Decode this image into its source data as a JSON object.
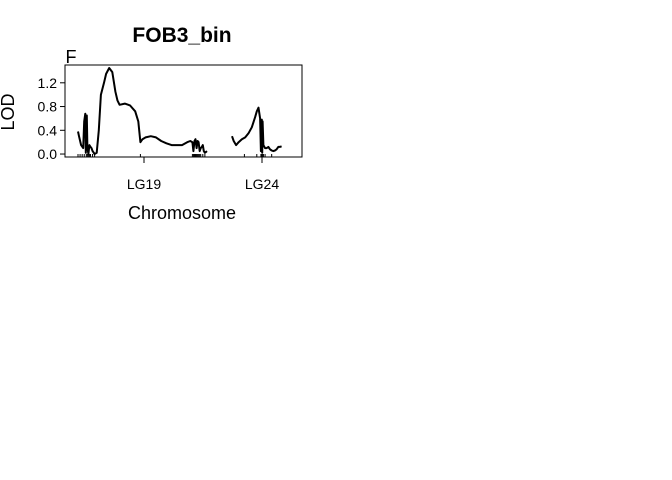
{
  "chart_data": {
    "type": "line",
    "title": "FOB3_bin",
    "panel_label": "F",
    "xlabel": "Chromosome",
    "ylabel": "LOD",
    "ylim": [
      -0.05,
      1.5
    ],
    "yticks": [
      0.0,
      0.4,
      0.8,
      1.2
    ],
    "ytick_labels": [
      "0.0",
      "0.4",
      "0.8",
      "1.2"
    ],
    "grid": false,
    "legend": "none",
    "line_color": "#000000",
    "chromosomes": [
      {
        "name": "LG19",
        "label": "LG19",
        "length_cM": 125,
        "markers_cM": [
          0,
          2,
          4,
          6,
          8,
          9,
          10,
          11,
          12,
          14,
          16,
          60,
          110,
          111,
          112,
          113,
          114,
          115,
          116,
          117,
          118,
          120,
          122
        ],
        "position": [
          0,
          1,
          3,
          5,
          6,
          7,
          7.5,
          8,
          8.5,
          9,
          10,
          11,
          12,
          13,
          14,
          16,
          18,
          20,
          22,
          25,
          27,
          30,
          33,
          36,
          38,
          40,
          45,
          50,
          55,
          58,
          60,
          62,
          65,
          70,
          75,
          80,
          85,
          90,
          95,
          100,
          105,
          108,
          110,
          111,
          112,
          113,
          114,
          115,
          116,
          117,
          118,
          119,
          120,
          121,
          122,
          124
        ],
        "lod": [
          0.38,
          0.3,
          0.15,
          0.1,
          0.55,
          0.68,
          0.02,
          0.6,
          0.65,
          0.1,
          0.0,
          0.15,
          0.12,
          0.1,
          0.05,
          0.0,
          0.02,
          0.4,
          1.0,
          1.2,
          1.35,
          1.45,
          1.38,
          1.05,
          0.9,
          0.83,
          0.85,
          0.82,
          0.72,
          0.55,
          0.2,
          0.25,
          0.28,
          0.3,
          0.28,
          0.22,
          0.18,
          0.15,
          0.15,
          0.15,
          0.2,
          0.22,
          0.2,
          0.05,
          0.22,
          0.25,
          0.1,
          0.22,
          0.2,
          0.05,
          0.1,
          0.12,
          0.15,
          0.05,
          0.02,
          0.05
        ]
      },
      {
        "name": "LG24",
        "label": "LG24",
        "length_cM": 75,
        "markers_cM": [
          15,
          30,
          35,
          36,
          37,
          38,
          40,
          48
        ],
        "position": [
          0,
          2,
          5,
          8,
          12,
          16,
          20,
          24,
          28,
          30,
          32,
          34,
          35,
          36,
          36.5,
          37,
          38,
          40,
          42,
          44,
          46,
          48,
          50,
          52,
          54,
          56,
          58,
          60
        ],
        "lod": [
          0.3,
          0.22,
          0.15,
          0.2,
          0.25,
          0.28,
          0.35,
          0.45,
          0.62,
          0.72,
          0.78,
          0.6,
          0.05,
          0.58,
          0.02,
          0.55,
          0.15,
          0.1,
          0.1,
          0.12,
          0.08,
          0.06,
          0.05,
          0.06,
          0.08,
          0.12,
          0.12,
          0.13
        ]
      }
    ]
  }
}
